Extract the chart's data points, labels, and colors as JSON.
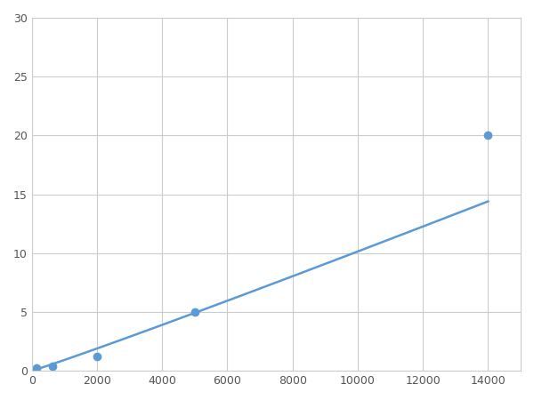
{
  "x_data": [
    156,
    625,
    2000,
    5000,
    14000
  ],
  "y_data": [
    0.2,
    0.4,
    1.25,
    5.0,
    20.0
  ],
  "line_color": "#5b9bd5",
  "marker_color": "#5b9bd5",
  "marker_size": 6,
  "line_width": 1.8,
  "xlim": [
    0,
    15000
  ],
  "ylim": [
    0,
    30
  ],
  "xticks": [
    0,
    2000,
    4000,
    6000,
    8000,
    10000,
    12000,
    14000
  ],
  "yticks": [
    0,
    5,
    10,
    15,
    20,
    25,
    30
  ],
  "grid_color": "#cccccc",
  "background_color": "#ffffff",
  "figsize": [
    6.0,
    4.5
  ],
  "dpi": 100
}
